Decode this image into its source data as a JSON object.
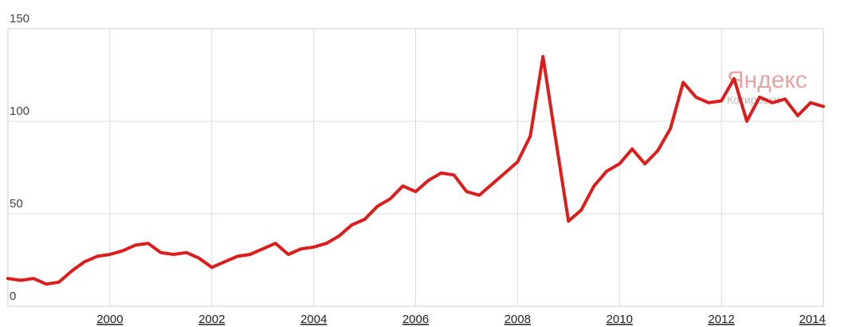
{
  "chart_data": {
    "type": "line",
    "title": "",
    "xlabel": "",
    "ylabel": "",
    "xlim": [
      1998,
      2014
    ],
    "ylim": [
      0,
      150
    ],
    "grid": true,
    "x_ticks": [
      "2000",
      "2002",
      "2004",
      "2006",
      "2008",
      "2010",
      "2012",
      "2014"
    ],
    "y_ticks": [
      "0",
      "50",
      "100",
      "150"
    ],
    "series": [
      {
        "color": "#dd1c1c",
        "x": [
          1998.0,
          1998.25,
          1998.5,
          1998.75,
          1999.0,
          1999.25,
          1999.5,
          1999.75,
          2000.0,
          2000.25,
          2000.5,
          2000.75,
          2001.0,
          2001.25,
          2001.5,
          2001.75,
          2002.0,
          2002.25,
          2002.5,
          2002.75,
          2003.0,
          2003.25,
          2003.5,
          2003.75,
          2004.0,
          2004.25,
          2004.5,
          2004.75,
          2005.0,
          2005.25,
          2005.5,
          2005.75,
          2006.0,
          2006.25,
          2006.5,
          2006.75,
          2007.0,
          2007.25,
          2007.5,
          2007.75,
          2008.0,
          2008.25,
          2008.5,
          2008.75,
          2009.0,
          2009.25,
          2009.5,
          2009.75,
          2010.0,
          2010.25,
          2010.5,
          2010.75,
          2011.0,
          2011.25,
          2011.5,
          2011.75,
          2012.0,
          2012.25,
          2012.5,
          2012.75,
          2013.0,
          2013.25,
          2013.5,
          2013.75,
          2014.0
        ],
        "values": [
          15,
          14,
          15,
          12,
          13,
          19,
          24,
          27,
          28,
          30,
          33,
          34,
          29,
          28,
          29,
          26,
          21,
          24,
          27,
          28,
          31,
          34,
          28,
          31,
          32,
          34,
          38,
          44,
          47,
          54,
          58,
          65,
          62,
          68,
          72,
          71,
          62,
          60,
          66,
          72,
          78,
          92,
          135,
          90,
          46,
          52,
          65,
          73,
          77,
          85,
          77,
          84,
          96,
          121,
          113,
          110,
          111,
          123,
          100,
          113,
          110,
          112,
          103,
          110,
          108
        ]
      }
    ],
    "watermark": {
      "main": "Яндекс",
      "sub": "Котировки"
    }
  },
  "colors": {
    "line": "#dd1c1c",
    "grid": "#dcdcdc",
    "watermark_main": "#e8a3a3",
    "watermark_sub": "#bbbbbb"
  }
}
